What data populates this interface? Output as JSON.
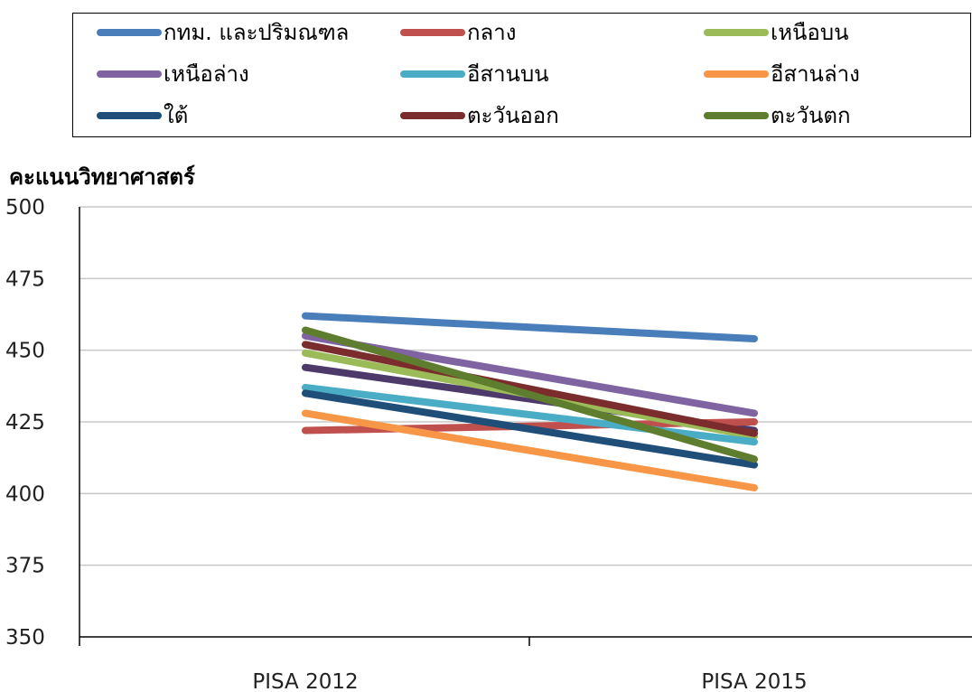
{
  "chart_data": {
    "type": "line",
    "ylabel": "คะแนนวิทยาศาสตร์",
    "xlabel": "",
    "categories": [
      "PISA 2012",
      "PISA 2015"
    ],
    "ylim": [
      350,
      500
    ],
    "yticks": [
      "500",
      "475",
      "450",
      "425",
      "400",
      "375",
      "350"
    ],
    "yticks_values": [
      500,
      475,
      450,
      425,
      400,
      375,
      350
    ],
    "grid": true,
    "legend_position": "top",
    "series": [
      {
        "name": "กทม. และปริมณฑล",
        "color": "#4a7ebb",
        "values": [
          462,
          454
        ]
      },
      {
        "name": "กลาง",
        "color": "#c0504d",
        "values": [
          422,
          425
        ]
      },
      {
        "name": "เหนือบน",
        "color": "#9bbb59",
        "values": [
          449,
          420
        ]
      },
      {
        "name": "เหนือล่าง",
        "color": "#8064a2",
        "values": [
          455,
          428
        ]
      },
      {
        "name": "อีสานบน",
        "color": "#4bacc6",
        "values": [
          437,
          418
        ]
      },
      {
        "name": "อีสานล่าง",
        "color": "#f79646",
        "values": [
          428,
          402
        ]
      },
      {
        "name": "ใต้",
        "color": "#1f4e79",
        "values": [
          435,
          410
        ]
      },
      {
        "name": "ตะวันออก",
        "color": "#7b2c2c",
        "values": [
          452,
          421
        ]
      },
      {
        "name": "ตะวันตก",
        "color": "#5e7d2e",
        "values": [
          457,
          412
        ]
      }
    ],
    "extra_lines": [
      {
        "color": "#4d3a6b",
        "values": [
          444,
          422
        ]
      }
    ]
  }
}
